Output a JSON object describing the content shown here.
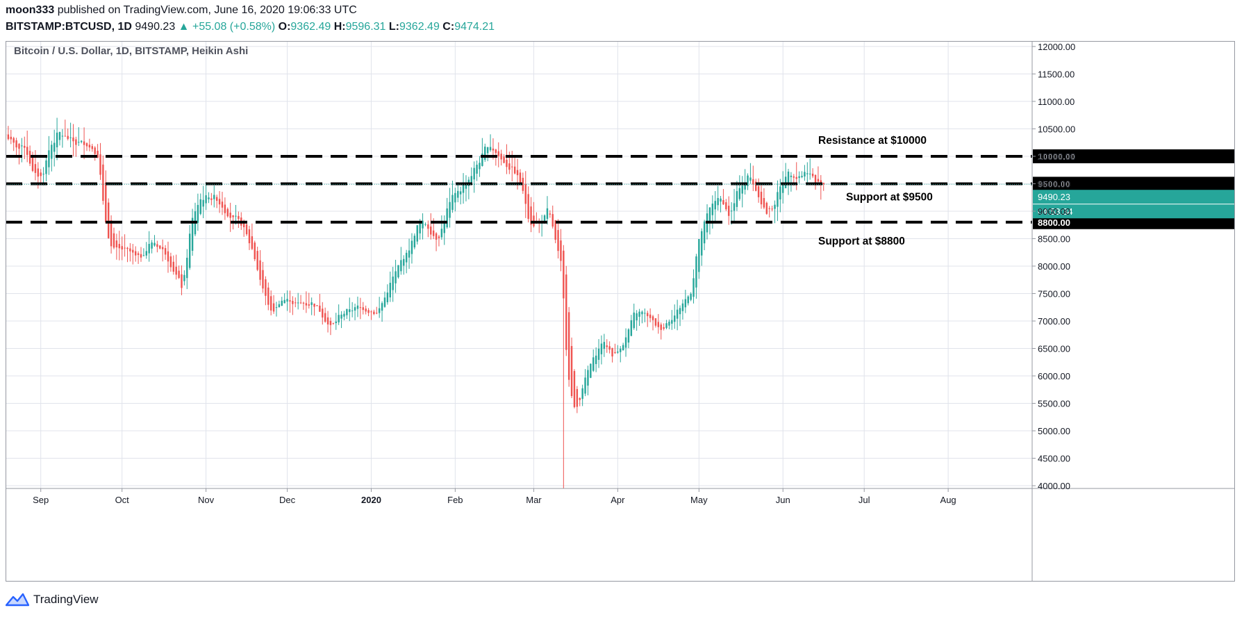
{
  "header": {
    "author": "moon333",
    "published": "published on TradingView.com, June 16, 2020 19:06:33 UTC",
    "symbol": "BITSTAMP:BTCUSD, 1D",
    "last": "9490.23",
    "change_icon": "triangle-up-icon",
    "change": "+55.08 (+0.58%)",
    "o_label": "O:",
    "o_value": "9362.49",
    "h_label": "H:",
    "h_value": "9596.31",
    "l_label": "L:",
    "l_value": "9362.49",
    "c_label": "C:",
    "c_value": "9474.21"
  },
  "brand": {
    "name": "TradingView",
    "icon": "tradingview-logo-icon"
  },
  "colors": {
    "up": "#26a69a",
    "down": "#ef5350",
    "grid": "#e0e3eb",
    "text": "#131722"
  },
  "chart_data": {
    "type": "candlestick",
    "title": "Bitcoin / U.S. Dollar, 1D, BITSTAMP, Heikin Ashi",
    "ylim": [
      3950,
      12100
    ],
    "y_ticks": [
      4000,
      4500,
      5000,
      5500,
      6000,
      6500,
      7000,
      7500,
      8000,
      8500,
      9000,
      9500,
      10000,
      10500,
      11000,
      11500,
      12000
    ],
    "y_tick_labels": [
      "4000.00",
      "4500.00",
      "5000.00",
      "5500.00",
      "6000.00",
      "6500.00",
      "7000.00",
      "7500.00",
      "8000.00",
      "8500.00",
      "9000.00",
      "9500.00",
      "10000.00",
      "10500.00",
      "11000.00",
      "11500.00",
      "12000.00"
    ],
    "x_range": [
      "2019-08-19",
      "2020-09-01"
    ],
    "x_ticks": [
      {
        "label": "Sep",
        "date": "2019-09-01"
      },
      {
        "label": "Oct",
        "date": "2019-10-01"
      },
      {
        "label": "Nov",
        "date": "2019-11-01"
      },
      {
        "label": "Dec",
        "date": "2019-12-01"
      },
      {
        "label": "2020",
        "date": "2020-01-01",
        "bold": true
      },
      {
        "label": "Feb",
        "date": "2020-02-01"
      },
      {
        "label": "Mar",
        "date": "2020-03-01"
      },
      {
        "label": "Apr",
        "date": "2020-04-01"
      },
      {
        "label": "May",
        "date": "2020-05-01"
      },
      {
        "label": "Jun",
        "date": "2020-06-01"
      },
      {
        "label": "Jul",
        "date": "2020-07-01"
      },
      {
        "label": "Aug",
        "date": "2020-08-01"
      }
    ],
    "price_anchors": [
      [
        "2019-08-19",
        10400
      ],
      [
        "2019-08-22",
        10100
      ],
      [
        "2019-08-26",
        10200
      ],
      [
        "2019-08-29",
        9550
      ],
      [
        "2019-09-01",
        9650
      ],
      [
        "2019-09-04",
        10300
      ],
      [
        "2019-09-07",
        10450
      ],
      [
        "2019-09-12",
        10250
      ],
      [
        "2019-09-18",
        10250
      ],
      [
        "2019-09-22",
        10000
      ],
      [
        "2019-09-24",
        8600
      ],
      [
        "2019-09-27",
        8200
      ],
      [
        "2019-10-01",
        8300
      ],
      [
        "2019-10-07",
        8100
      ],
      [
        "2019-10-11",
        8500
      ],
      [
        "2019-10-17",
        8200
      ],
      [
        "2019-10-23",
        7500
      ],
      [
        "2019-10-26",
        9000
      ],
      [
        "2019-10-30",
        9300
      ],
      [
        "2019-11-04",
        9250
      ],
      [
        "2019-11-08",
        9000
      ],
      [
        "2019-11-14",
        8700
      ],
      [
        "2019-11-18",
        8200
      ],
      [
        "2019-11-22",
        7400
      ],
      [
        "2019-11-25",
        7050
      ],
      [
        "2019-11-28",
        7450
      ],
      [
        "2019-12-04",
        7300
      ],
      [
        "2019-12-10",
        7350
      ],
      [
        "2019-12-17",
        6850
      ],
      [
        "2019-12-20",
        7150
      ],
      [
        "2019-12-26",
        7250
      ],
      [
        "2020-01-01",
        7200
      ],
      [
        "2020-01-03",
        7150
      ],
      [
        "2020-01-08",
        7800
      ],
      [
        "2020-01-14",
        8300
      ],
      [
        "2020-01-18",
        8850
      ],
      [
        "2020-01-21",
        8750
      ],
      [
        "2020-01-25",
        8450
      ],
      [
        "2020-01-29",
        9200
      ],
      [
        "2020-02-01",
        9350
      ],
      [
        "2020-02-06",
        9650
      ],
      [
        "2020-02-10",
        10000
      ],
      [
        "2020-02-13",
        10250
      ],
      [
        "2020-02-18",
        9900
      ],
      [
        "2020-02-22",
        9750
      ],
      [
        "2020-02-25",
        9400
      ],
      [
        "2020-02-28",
        8700
      ],
      [
        "2020-03-03",
        8800
      ],
      [
        "2020-03-06",
        9050
      ],
      [
        "2020-03-09",
        8200
      ],
      [
        "2020-03-11",
        7800
      ],
      [
        "2020-03-13",
        5600
      ],
      [
        "2020-03-16",
        5200
      ],
      [
        "2020-03-19",
        6000
      ],
      [
        "2020-03-22",
        6300
      ],
      [
        "2020-03-26",
        6700
      ],
      [
        "2020-03-30",
        6300
      ],
      [
        "2020-04-03",
        6700
      ],
      [
        "2020-04-07",
        7200
      ],
      [
        "2020-04-11",
        7100
      ],
      [
        "2020-04-16",
        6800
      ],
      [
        "2020-04-20",
        7100
      ],
      [
        "2020-04-24",
        7300
      ],
      [
        "2020-04-28",
        7600
      ],
      [
        "2020-04-30",
        8600
      ],
      [
        "2020-05-03",
        8900
      ],
      [
        "2020-05-07",
        9300
      ],
      [
        "2020-05-10",
        9100
      ],
      [
        "2020-05-12",
        8800
      ],
      [
        "2020-05-15",
        9500
      ],
      [
        "2020-05-19",
        9700
      ],
      [
        "2020-05-23",
        9200
      ],
      [
        "2020-05-26",
        8850
      ],
      [
        "2020-05-29",
        9300
      ],
      [
        "2020-06-02",
        9800
      ],
      [
        "2020-06-06",
        9650
      ],
      [
        "2020-06-10",
        9750
      ],
      [
        "2020-06-13",
        9450
      ],
      [
        "2020-06-16",
        9490
      ]
    ],
    "horizontal_levels": [
      {
        "price": 10000,
        "label": "10000.00",
        "annotation": "Resistance at $10000"
      },
      {
        "price": 9500,
        "label": "9500.00",
        "annotation": "Support at $9500"
      },
      {
        "price": 8800,
        "label": "8800.00",
        "annotation": "Support at $8800"
      }
    ],
    "last_price": {
      "price": 9490.23,
      "label": "9490.23",
      "countdown": "04:53:34"
    },
    "grid": true
  }
}
